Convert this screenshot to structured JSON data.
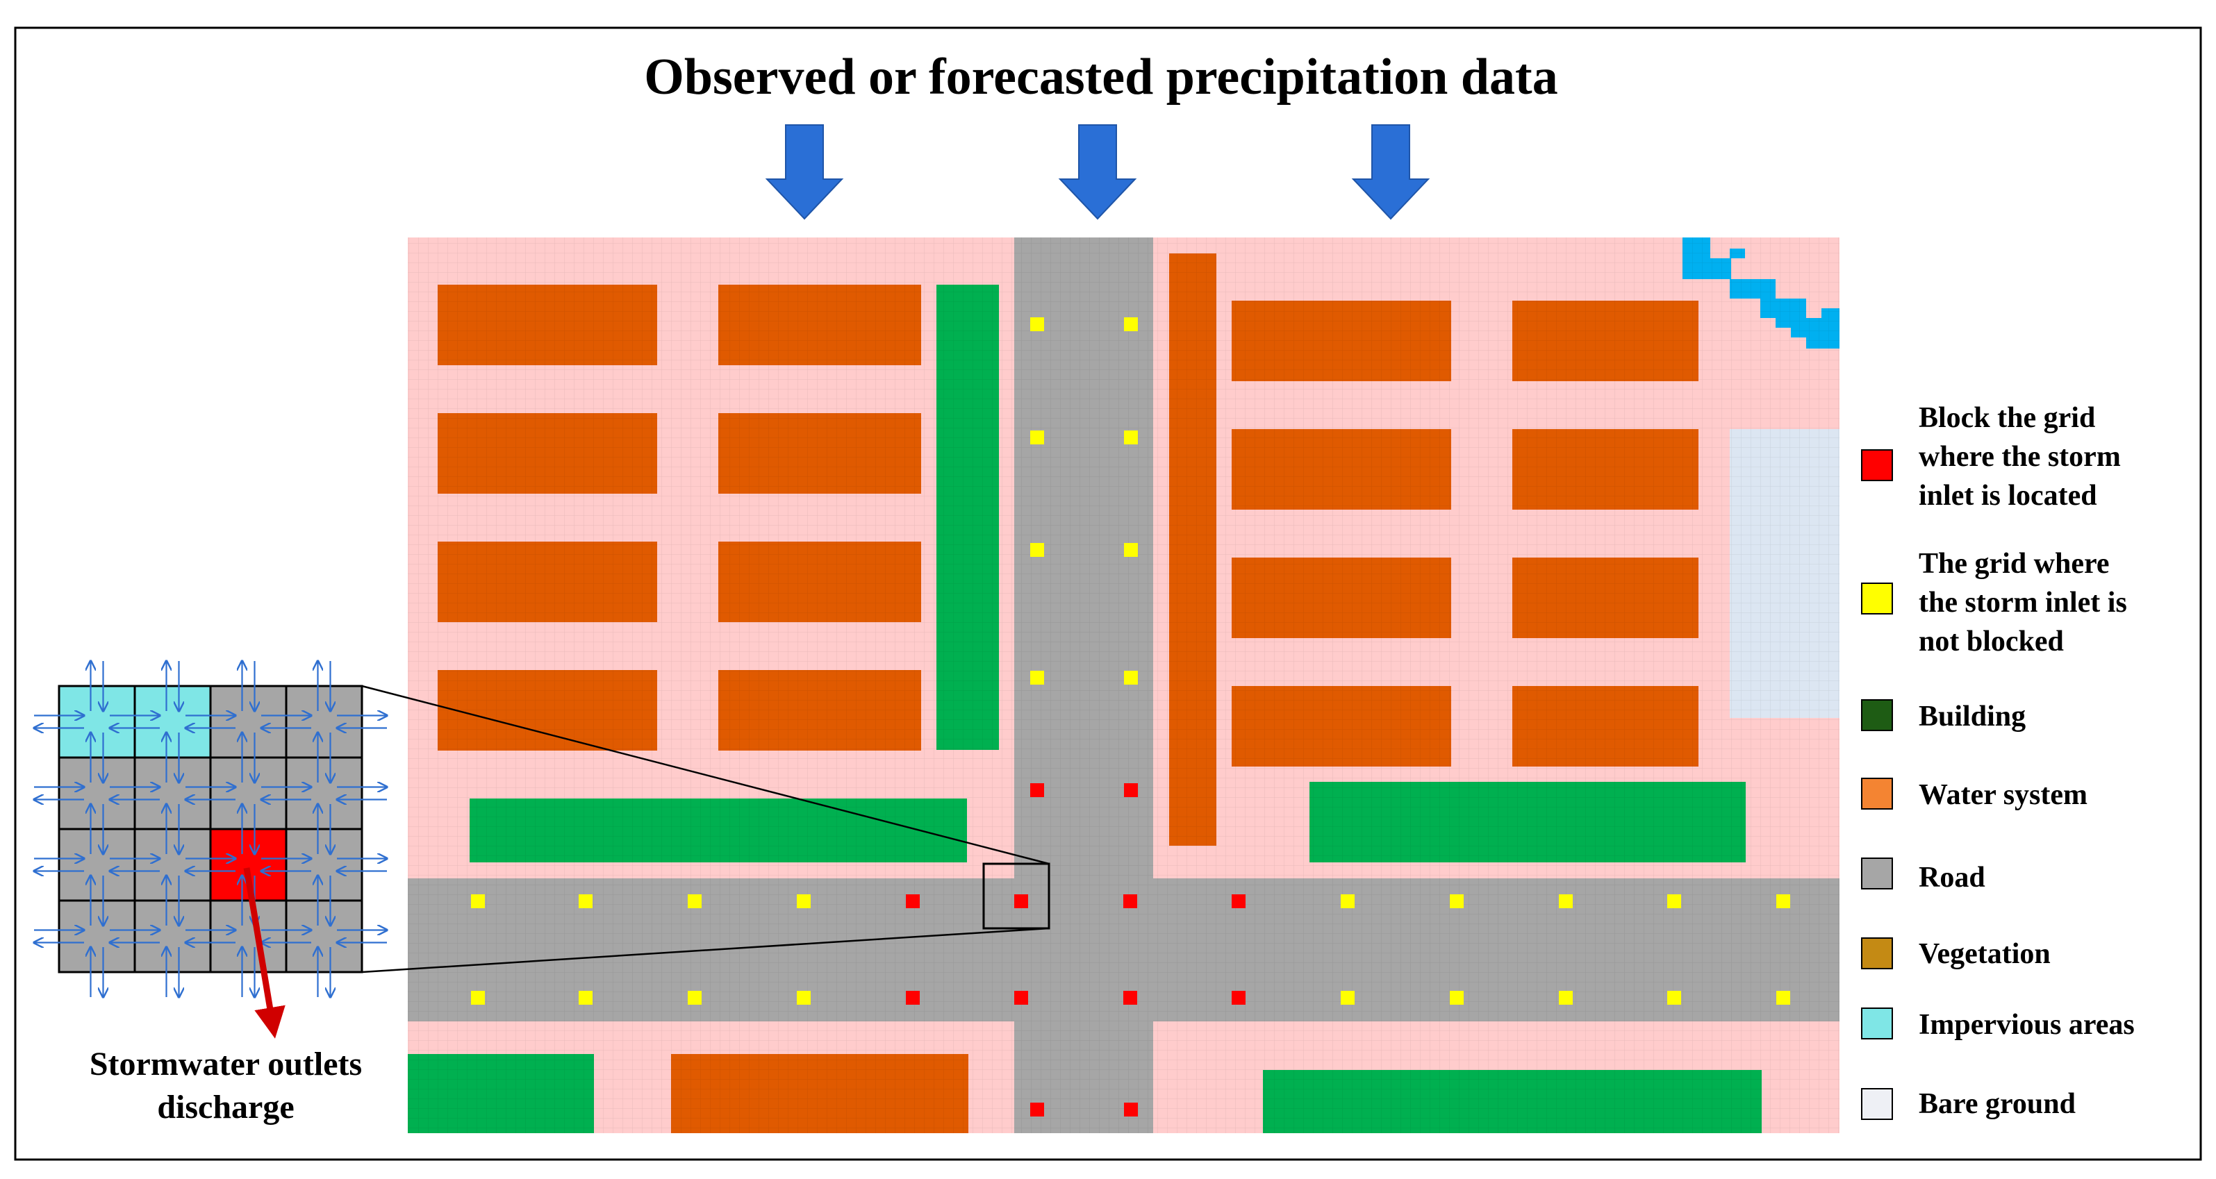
{
  "title": "Observed or forecasted precipitation data",
  "inset_caption": [
    "Stormwater outlets",
    "discharge"
  ],
  "legend": [
    {
      "lines": [
        "Block the grid",
        "where the storm",
        "inlet is located"
      ],
      "color": "#ff0000"
    },
    {
      "lines": [
        "The grid where",
        "the storm inlet is",
        "not blocked"
      ],
      "color": "#ffff00"
    },
    {
      "lines": [
        "Building"
      ],
      "color": "#1e5c14"
    },
    {
      "lines": [
        "Water system"
      ],
      "color": "#f48432"
    },
    {
      "lines": [
        "Road"
      ],
      "color": "#a6a6a6"
    },
    {
      "lines": [
        "Vegetation"
      ],
      "color": "#c48a14"
    },
    {
      "lines": [
        "Impervious areas"
      ],
      "color": "#7fe6e6"
    },
    {
      "lines": [
        "Bare ground"
      ],
      "color": "#eef0f5"
    }
  ],
  "colors": {
    "ground": "#ffcccc",
    "road": "#a6a6a6",
    "orange_block": "#e05a00",
    "green_block": "#00b050",
    "water": "#00b0f0",
    "bare": "#dce6f2",
    "arrow": "#2a6fd6",
    "inlet_blocked": "#ff0000",
    "inlet_open": "#ffff00",
    "flow_arrow": "#2f6fd0",
    "outlet_arrow": "#d00000"
  }
}
